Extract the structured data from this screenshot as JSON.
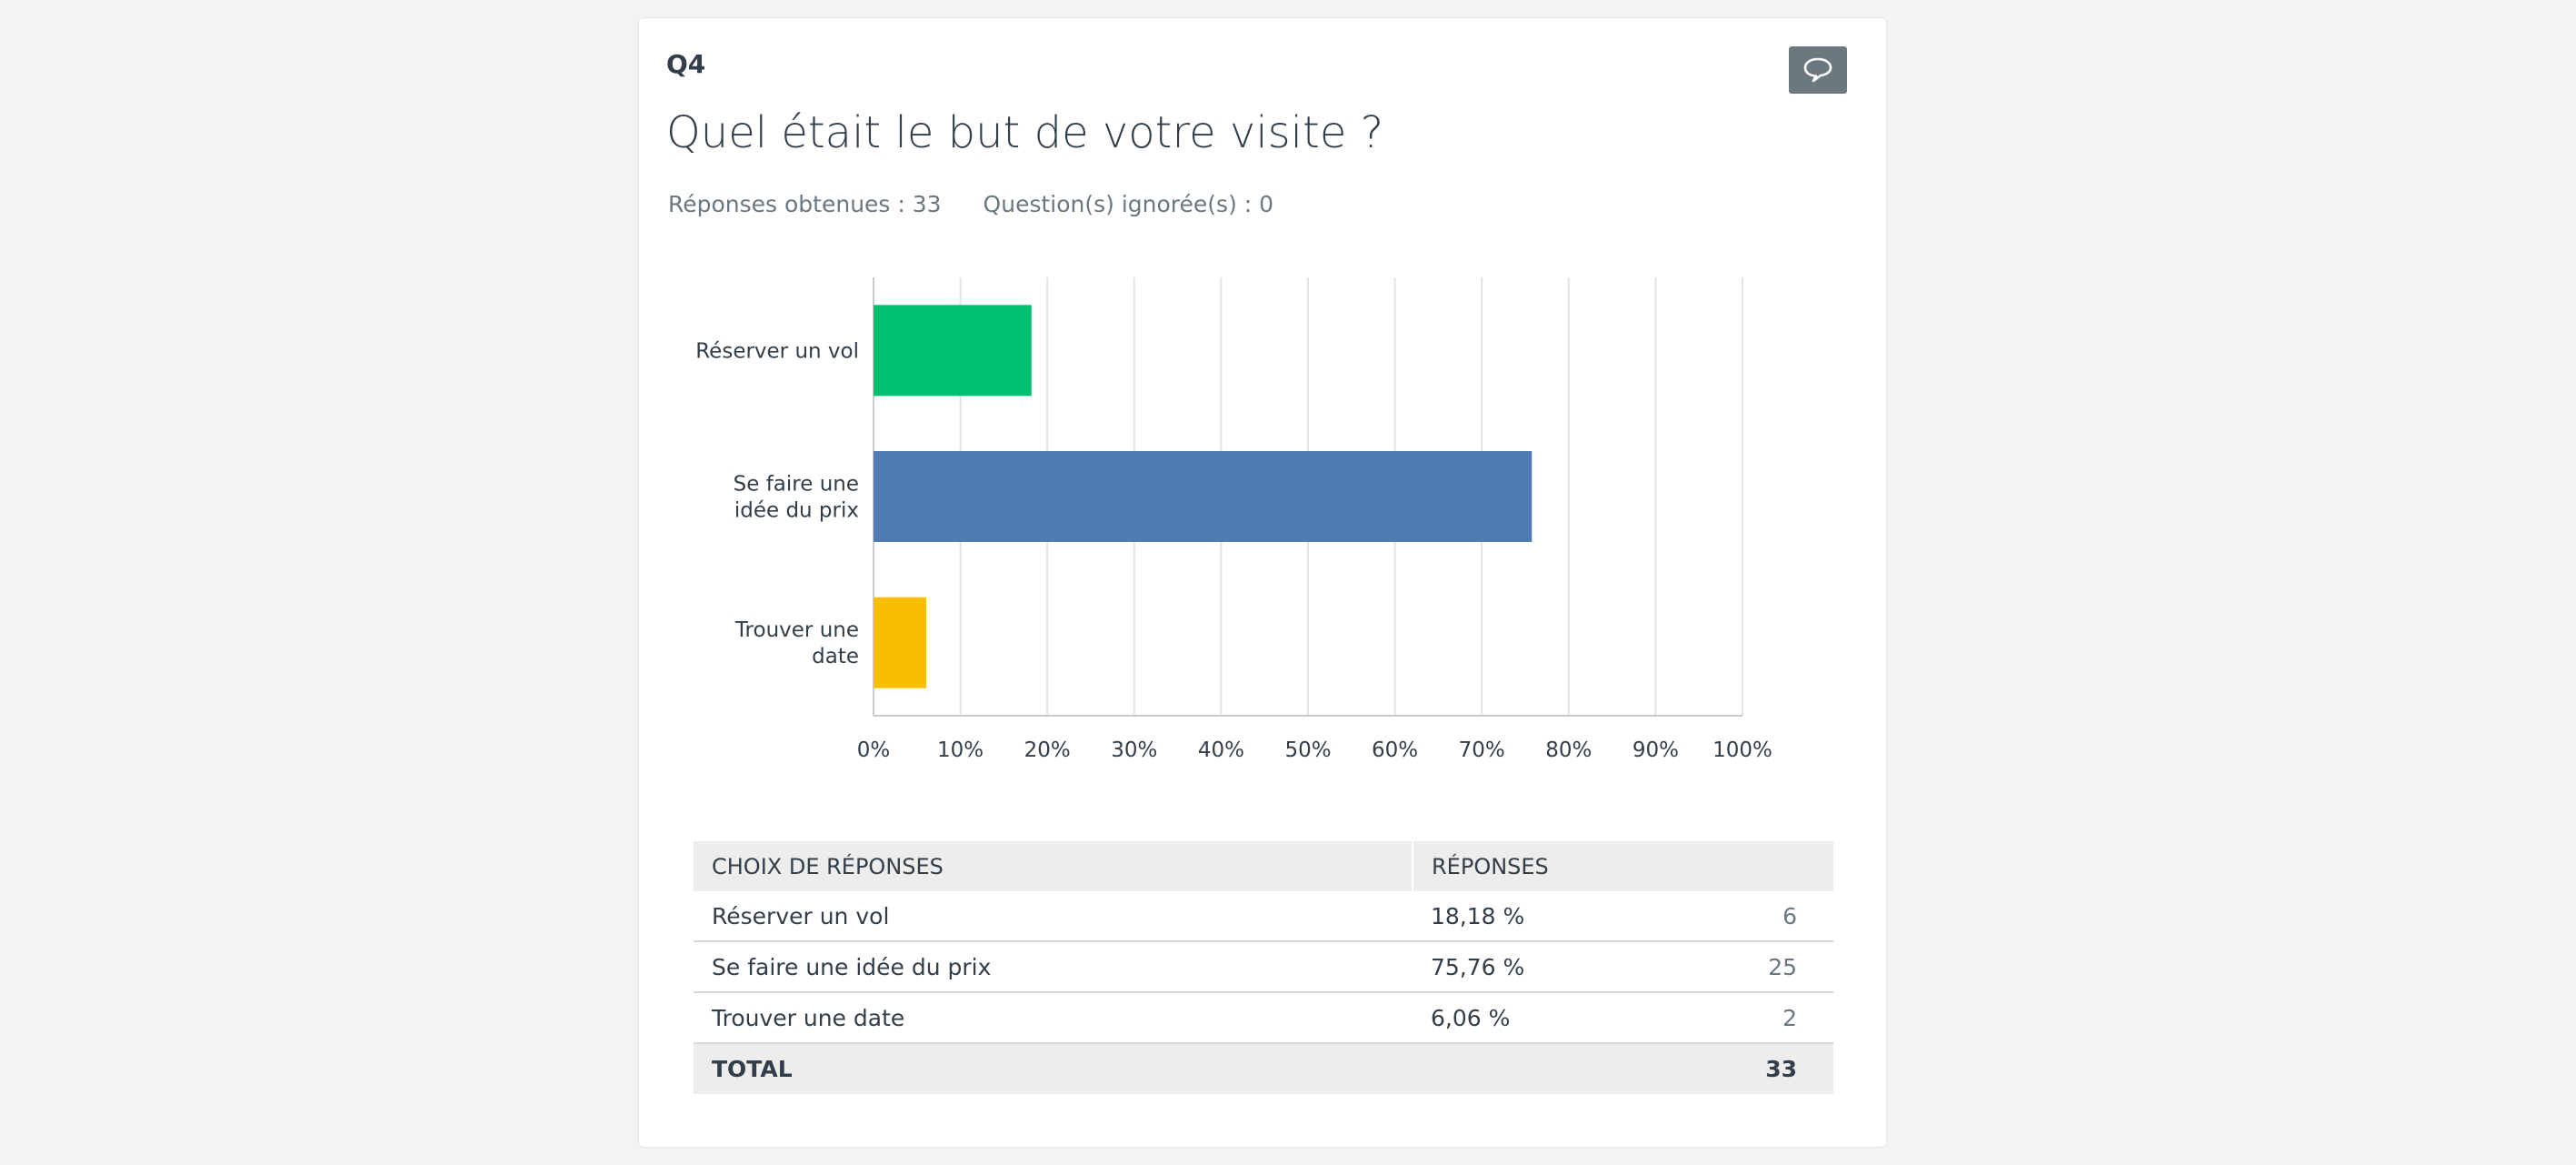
{
  "question": {
    "number": "Q4",
    "title": "Quel était le but de votre visite ?",
    "answered": "Réponses obtenues : 33",
    "skipped": "Question(s) ignorée(s) : 0"
  },
  "icons": {
    "comment": "comment-icon"
  },
  "chart_data": {
    "type": "bar",
    "orientation": "horizontal",
    "categories": [
      "Réserver un vol",
      "Se faire une idée du prix",
      "Trouver une date"
    ],
    "category_label_lines": [
      [
        "Réserver un vol"
      ],
      [
        "Se faire une",
        "idée du prix"
      ],
      [
        "Trouver une",
        "date"
      ]
    ],
    "values": [
      18.18,
      75.76,
      6.06
    ],
    "colors": [
      "#00bf6f",
      "#507cb6",
      "#f9be00"
    ],
    "xlim": [
      0,
      100
    ],
    "xticks": [
      "0%",
      "10%",
      "20%",
      "30%",
      "40%",
      "50%",
      "60%",
      "70%",
      "80%",
      "90%",
      "100%"
    ],
    "grid": true
  },
  "table": {
    "headers": [
      "CHOIX DE RÉPONSES",
      "RÉPONSES"
    ],
    "rows": [
      {
        "choice": "Réserver un vol",
        "percent": "18,18 %",
        "count": "6"
      },
      {
        "choice": "Se faire une idée du prix",
        "percent": "75,76 %",
        "count": "25"
      },
      {
        "choice": "Trouver une date",
        "percent": "6,06 %",
        "count": "2"
      }
    ],
    "total_label": "TOTAL",
    "total_count": "33"
  }
}
